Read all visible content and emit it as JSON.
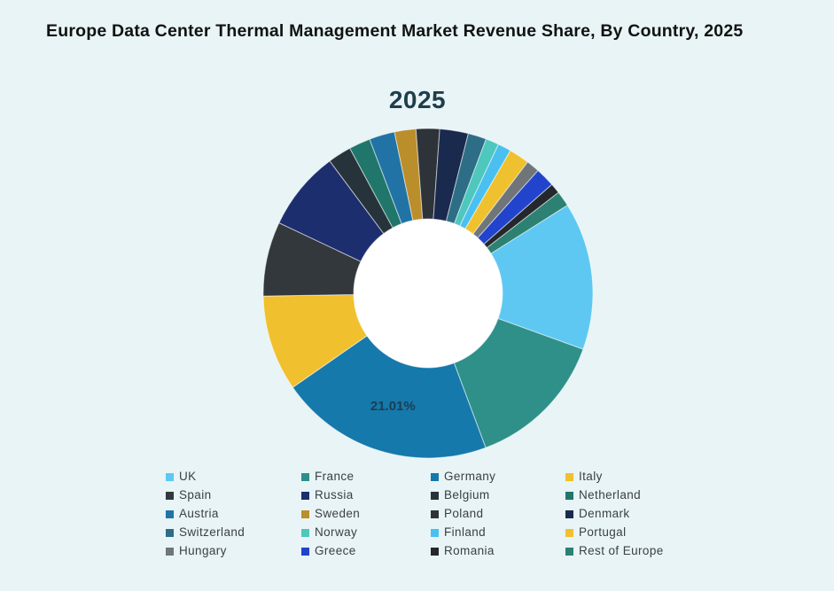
{
  "page": {
    "background_color": "#e8f4f6"
  },
  "chart_data": {
    "type": "pie",
    "donut": true,
    "title": "Europe Data Center Thermal Management Market Revenue Share, By Country, 2025",
    "subtitle": "2025",
    "legend_position": "bottom",
    "legend_columns": 4,
    "start_angle_deg": 57.7,
    "direction": "clockwise",
    "inner_radius_ratio": 0.45,
    "data_label": {
      "series": "Germany",
      "text": "21.01%",
      "color": "#1e3d52"
    },
    "series": [
      {
        "name": "UK",
        "value": 14.49,
        "color": "#5ec8f2"
      },
      {
        "name": "France",
        "value": 13.8,
        "color": "#2e9089"
      },
      {
        "name": "Germany",
        "value": 21.01,
        "color": "#1579ab"
      },
      {
        "name": "Italy",
        "value": 9.4,
        "color": "#f0c02e"
      },
      {
        "name": "Spain",
        "value": 7.3,
        "color": "#33383d"
      },
      {
        "name": "Russia",
        "value": 7.8,
        "color": "#1c2e6e"
      },
      {
        "name": "Belgium",
        "value": 2.3,
        "color": "#27333a"
      },
      {
        "name": "Netherland",
        "value": 2.1,
        "color": "#20766a"
      },
      {
        "name": "Austria",
        "value": 2.5,
        "color": "#2173a6"
      },
      {
        "name": "Sweden",
        "value": 2.1,
        "color": "#bb8e2c"
      },
      {
        "name": "Poland",
        "value": 2.3,
        "color": "#2e3339"
      },
      {
        "name": "Denmark",
        "value": 2.8,
        "color": "#1a2a4e"
      },
      {
        "name": "Switzerland",
        "value": 1.8,
        "color": "#2d6e86"
      },
      {
        "name": "Norway",
        "value": 1.3,
        "color": "#4ec7bd"
      },
      {
        "name": "Finland",
        "value": 1.3,
        "color": "#49c0f0"
      },
      {
        "name": "Portugal",
        "value": 2.0,
        "color": "#f0c12f"
      },
      {
        "name": "Hungary",
        "value": 1.3,
        "color": "#70757a"
      },
      {
        "name": "Greece",
        "value": 1.9,
        "color": "#2244cc"
      },
      {
        "name": "Romania",
        "value": 1.0,
        "color": "#24282d"
      },
      {
        "name": "Rest of Europe",
        "value": 1.5,
        "color": "#2c8173"
      }
    ]
  }
}
